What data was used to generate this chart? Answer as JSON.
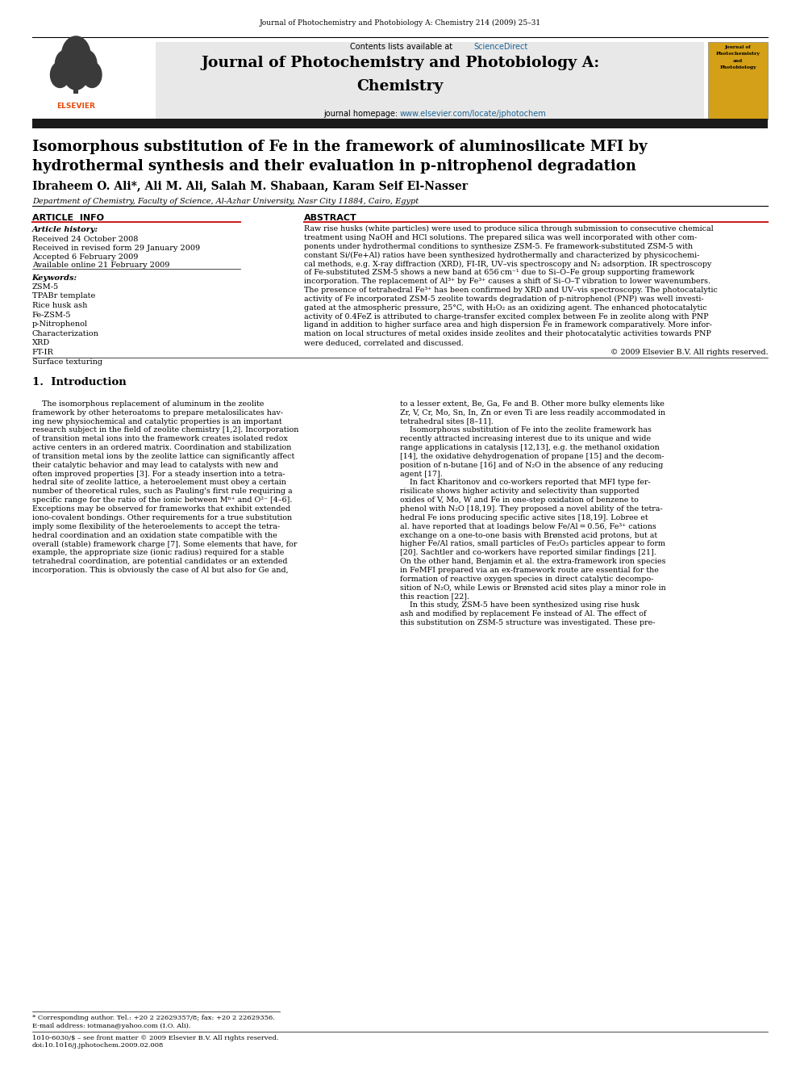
{
  "page_width": 9.92,
  "page_height": 13.23,
  "bg_color": "#ffffff",
  "journal_header": "Journal of Photochemistry and Photobiology A: Chemistry 214 (2009) 25–31",
  "journal_title_line1": "Journal of Photochemistry and Photobiology A:",
  "journal_title_line2": "Chemistry",
  "contents_text": "Contents lists available at ",
  "sciencedirect_text": "ScienceDirect",
  "sciencedirect_color": "#1a6496",
  "journal_homepage_text": "journal homepage: ",
  "journal_homepage_url": "www.elsevier.com/locate/jphotochem",
  "header_bg_color": "#e8e8e8",
  "article_title_line1": "Isomorphous substitution of Fe in the framework of aluminosilicate MFI by",
  "article_title_line2": "hydrothermal synthesis and their evaluation in p-nitrophenol degradation",
  "authors": "Ibraheem O. Ali*, Ali M. Ali, Salah M. Shabaan, Karam Seif El-Nasser",
  "affiliation": "Department of Chemistry, Faculty of Science, Al-Azhar University, Nasr City 11884, Cairo, Egypt",
  "article_info_header": "ARTICLE  INFO",
  "abstract_header": "ABSTRACT",
  "article_history_label": "Article history:",
  "received_1": "Received 24 October 2008",
  "received_revised": "Received in revised form 29 January 2009",
  "accepted": "Accepted 6 February 2009",
  "available": "Available online 21 February 2009",
  "keywords_label": "Keywords:",
  "keywords": [
    "ZSM-5",
    "TPABr template",
    "Rice husk ash",
    "Fe-ZSM-5",
    "p-Nitrophenol",
    "Characterization",
    "XRD",
    "FT-IR",
    "Surface texturing"
  ],
  "copyright": "© 2009 Elsevier B.V. All rights reserved.",
  "intro_section_title": "1.  Introduction",
  "footnote_star": "* Corresponding author. Tel.: +20 2 22629357/8; fax: +20 2 22629356.",
  "footnote_email": "E-mail address: iotmana@yahoo.com (I.O. Ali).",
  "footer_text1": "1010-6030/$ – see front matter © 2009 Elsevier B.V. All rights reserved.",
  "footer_text2": "doi:10.1016/j.jphotochem.2009.02.008",
  "black_bar_color": "#1a1a1a",
  "elsevier_orange": "#d4a017",
  "link_color": "#1a6496",
  "abstract_lines": [
    "Raw rise husks (white particles) were used to produce silica through submission to consecutive chemical",
    "treatment using NaOH and HCl solutions. The prepared silica was well incorporated with other com-",
    "ponents under hydrothermal conditions to synthesize ZSM-5. Fe framework-substituted ZSM-5 with",
    "constant Si/(Fe+Al) ratios have been synthesized hydrothermally and characterized by physicochemi-",
    "cal methods, e.g. X-ray diffraction (XRD), FI-IR, UV–vis spectroscopy and N₂ adsorption. IR spectroscopy",
    "of Fe-substituted ZSM-5 shows a new band at 656 cm⁻¹ due to Si–O–Fe group supporting framework",
    "incorporation. The replacement of Al³⁺ by Fe³⁺ causes a shift of Si–O–T vibration to lower wavenumbers.",
    "The presence of tetrahedral Fe³⁺ has been confirmed by XRD and UV–vis spectroscopy. The photocatalytic",
    "activity of Fe incorporated ZSM-5 zeolite towards degradation of p-nitrophenol (PNP) was well investi-",
    "gated at the atmospheric pressure, 25°C, with H₂O₂ as an oxidizing agent. The enhanced photocatalytic",
    "activity of 0.4FeZ is attributed to charge-transfer excited complex between Fe in zeolite along with PNP",
    "ligand in addition to higher surface area and high dispersion Fe in framework comparatively. More infor-",
    "mation on local structures of metal oxides inside zeolites and their photocatalytic activities towards PNP",
    "were deduced, correlated and discussed."
  ],
  "intro_col1": [
    "    The isomorphous replacement of aluminum in the zeolite",
    "framework by other heteroatoms to prepare metalosilicates hav-",
    "ing new physiochemical and catalytic properties is an important",
    "research subject in the field of zeolite chemistry [1,2]. Incorporation",
    "of transition metal ions into the framework creates isolated redox",
    "active centers in an ordered matrix. Coordination and stabilization",
    "of transition metal ions by the zeolite lattice can significantly affect",
    "their catalytic behavior and may lead to catalysts with new and",
    "often improved properties [3]. For a steady insertion into a tetra-",
    "hedral site of zeolite lattice, a heteroelement must obey a certain",
    "number of theoretical rules, such as Pauling's first rule requiring a",
    "specific range for the ratio of the ionic between Mⁿ⁺ and O²⁻ [4–6].",
    "Exceptions may be observed for frameworks that exhibit extended",
    "iono-covalent bondings. Other requirements for a true substitution",
    "imply some flexibility of the heteroelements to accept the tetra-",
    "hedral coordination and an oxidation state compatible with the",
    "overall (stable) framework charge [7]. Some elements that have, for",
    "example, the appropriate size (ionic radius) required for a stable",
    "tetrahedral coordination, are potential candidates or an extended",
    "incorporation. This is obviously the case of Al but also for Ge and,"
  ],
  "intro_col2": [
    "to a lesser extent, Be, Ga, Fe and B. Other more bulky elements like",
    "Zr, V, Cr, Mo, Sn, In, Zn or even Ti are less readily accommodated in",
    "tetrahedral sites [8–11].",
    "    Isomorphous substitution of Fe into the zeolite framework has",
    "recently attracted increasing interest due to its unique and wide",
    "range applications in catalysis [12,13], e.g. the methanol oxidation",
    "[14], the oxidative dehydrogenation of propane [15] and the decom-",
    "position of n-butane [16] and of N₂O in the absence of any reducing",
    "agent [17].",
    "    In fact Kharitonov and co-workers reported that MFI type fer-",
    "risilicate shows higher activity and selectivity than supported",
    "oxides of V, Mo, W and Fe in one-step oxidation of benzene to",
    "phenol with N₂O [18,19]. They proposed a novel ability of the tetra-",
    "hedral Fe ions producing specific active sites [18,19]. Lobree et",
    "al. have reported that at loadings below Fe/Al = 0.56, Fe³⁺ cations",
    "exchange on a one-to-one basis with Brønsted acid protons, but at",
    "higher Fe/Al ratios, small particles of Fe₂O₃ particles appear to form",
    "[20]. Sachtler and co-workers have reported similar findings [21].",
    "On the other hand, Benjamin et al. the extra-framework iron species",
    "in FeMFI prepared via an ex-framework route are essential for the",
    "formation of reactive oxygen species in direct catalytic decompo-",
    "sition of N₂O, while Lewis or Brønsted acid sites play a minor role in",
    "this reaction [22].",
    "    In this study, ZSM-5 have been synthesized using rise husk",
    "ash and modified by replacement Fe instead of Al. The effect of",
    "this substitution on ZSM-5 structure was investigated. These pre-"
  ]
}
